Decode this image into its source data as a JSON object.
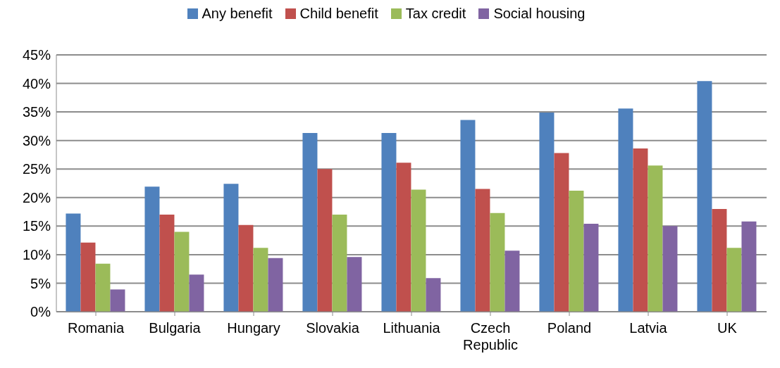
{
  "chart_data": {
    "type": "bar",
    "categories": [
      "Romania",
      "Bulgaria",
      "Hungary",
      "Slovakia",
      "Lithuania",
      "Czech Republic",
      "Poland",
      "Latvia",
      "UK"
    ],
    "series": [
      {
        "name": "Any benefit",
        "color": "#4f81bd",
        "values": [
          17.2,
          21.9,
          22.4,
          31.3,
          31.3,
          33.6,
          34.9,
          35.6,
          40.4
        ]
      },
      {
        "name": "Child benefit",
        "color": "#c0504d",
        "values": [
          12.1,
          17.0,
          15.2,
          25.0,
          26.1,
          21.5,
          27.8,
          28.6,
          18.0
        ]
      },
      {
        "name": "Tax credit",
        "color": "#9bbb59",
        "values": [
          8.4,
          14.0,
          11.2,
          17.0,
          21.4,
          17.3,
          21.2,
          25.6,
          11.2
        ]
      },
      {
        "name": "Social housing",
        "color": "#8064a2",
        "values": [
          3.9,
          6.5,
          9.4,
          9.6,
          5.9,
          10.7,
          15.4,
          15.0,
          15.8
        ]
      }
    ],
    "ylim": [
      0,
      45
    ],
    "yticks": [
      {
        "value": 0,
        "label": "0%"
      },
      {
        "value": 5,
        "label": "5%"
      },
      {
        "value": 10,
        "label": "10%"
      },
      {
        "value": 15,
        "label": "15%"
      },
      {
        "value": 20,
        "label": "20%"
      },
      {
        "value": 25,
        "label": "25%"
      },
      {
        "value": 30,
        "label": "30%"
      },
      {
        "value": 35,
        "label": "35%"
      },
      {
        "value": 40,
        "label": "40%"
      },
      {
        "value": 45,
        "label": "45%"
      }
    ],
    "grid": "y",
    "legend": "top"
  }
}
